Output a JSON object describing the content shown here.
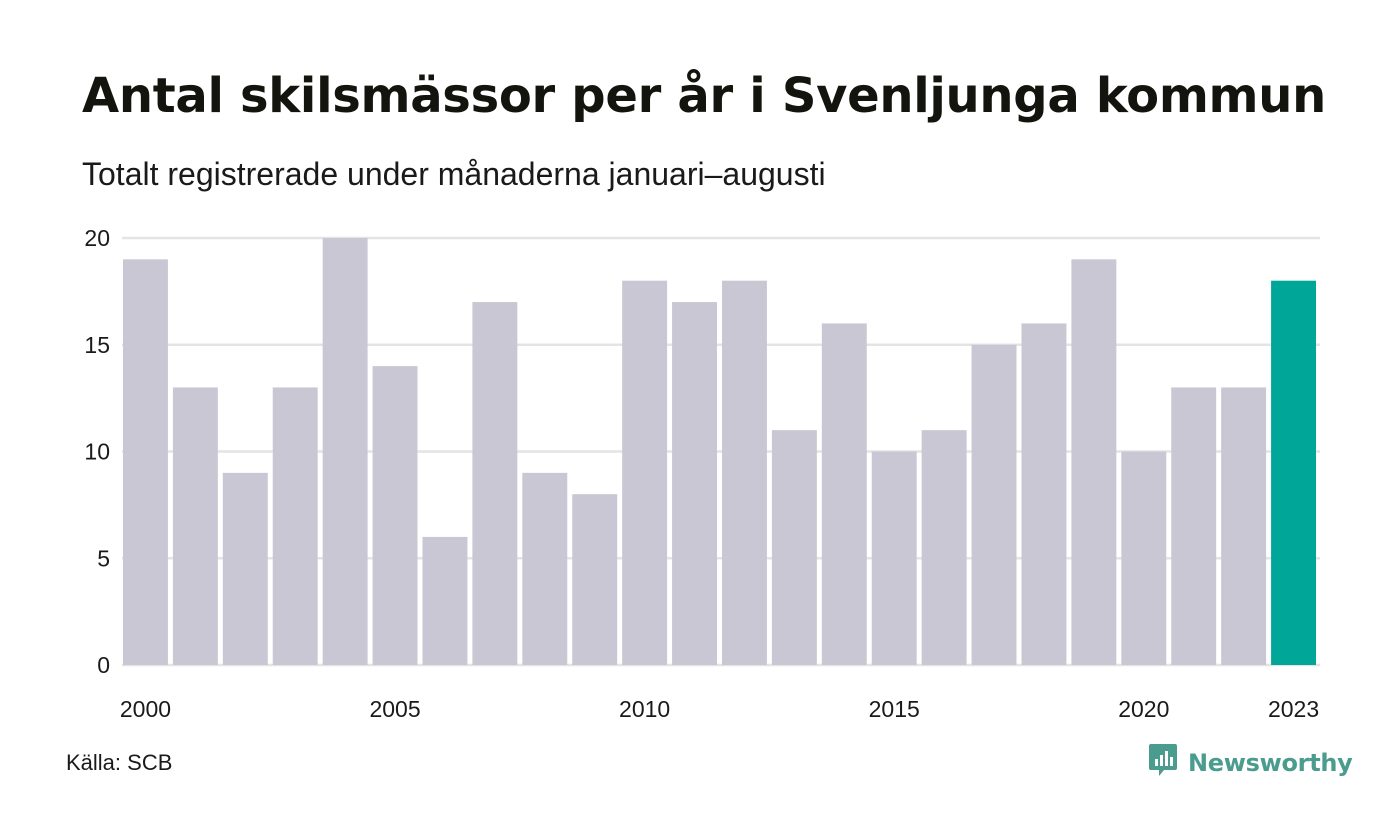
{
  "header": {
    "title": "Antal skilsmässor per år i Svenljunga kommun",
    "subtitle": "Totalt registrerade under månaderna januari–augusti"
  },
  "footer": {
    "source": "Källa: SCB",
    "brand": "Newsworthy",
    "brand_icon": "newsworthy-logo-icon"
  },
  "colors": {
    "bar": "#c8c7d3",
    "highlight": "#00a698",
    "grid": "#e4e4e4",
    "brand": "#4a9c8e"
  },
  "chart_data": {
    "type": "bar",
    "categories": [
      "2000",
      "2001",
      "2002",
      "2003",
      "2004",
      "2005",
      "2006",
      "2007",
      "2008",
      "2009",
      "2010",
      "2011",
      "2012",
      "2013",
      "2014",
      "2015",
      "2016",
      "2017",
      "2018",
      "2019",
      "2020",
      "2021",
      "2022",
      "2023"
    ],
    "values": [
      19,
      13,
      9,
      13,
      20,
      14,
      6,
      17,
      9,
      8,
      18,
      17,
      18,
      11,
      16,
      10,
      11,
      15,
      16,
      19,
      10,
      13,
      13,
      18
    ],
    "highlight_category": "2023",
    "x_tick_labels": [
      "2000",
      "2005",
      "2010",
      "2015",
      "2020",
      "2023"
    ],
    "y_ticks": [
      0,
      5,
      10,
      15,
      20
    ],
    "ylim": [
      0,
      20
    ],
    "grid": true,
    "xlabel": "",
    "ylabel": ""
  }
}
